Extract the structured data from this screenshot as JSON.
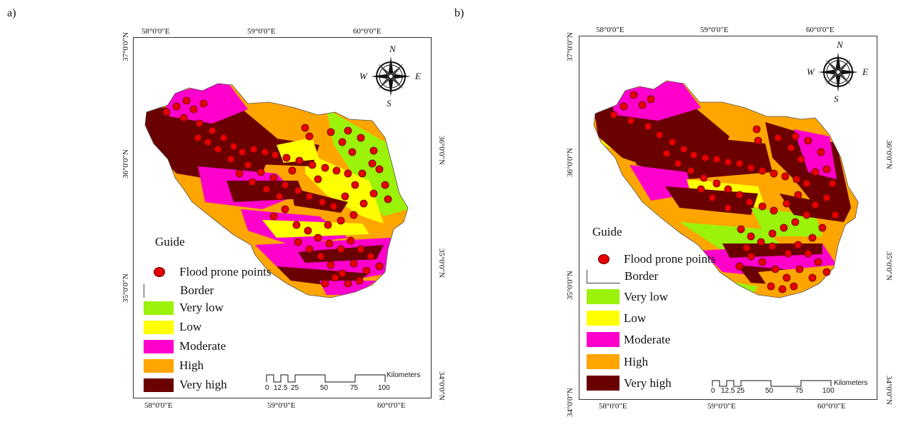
{
  "colors": {
    "very_low": "#9bf20a",
    "low": "#ffff00",
    "moderate": "#ff00cc",
    "high": "#ffa500",
    "very_high": "#6b0000",
    "flood_point": "#e60000"
  },
  "panels": [
    {
      "label": "a)",
      "lon_labels_top": [
        "58°0'0\"E",
        "59°0'0\"E",
        "60°0'0\"E"
      ],
      "lon_labels_bottom": [
        "58°0'0\"E",
        "59°0'0\"E",
        "60°0'0\"E"
      ],
      "lat_labels_left": [
        "37°0'0\"N",
        "36°0'0\"N",
        "35°0'0\"N"
      ],
      "lat_labels_right": [
        "36°0'0\"N",
        "35°0'0\"N",
        "34°0'0\"N"
      ],
      "compass": {
        "n": "N",
        "s": "S",
        "e": "E",
        "w": "W"
      },
      "legend": {
        "title": "Guide",
        "points": "Flood prone points",
        "border": "Border",
        "classes": [
          "Very low",
          "Low",
          "Moderate",
          "High",
          "Very high"
        ]
      },
      "scale": {
        "unit": "Kilometers",
        "ticks": [
          "0",
          "12.5",
          "25",
          "50",
          "75",
          "100"
        ]
      }
    },
    {
      "label": "b)",
      "lon_labels_top": [
        "58°0'0\"E",
        "59°0'0\"E",
        "60°0'0\"E"
      ],
      "lon_labels_bottom": [
        "58°0'0\"E",
        "59°0'0\"E",
        "60°0'0\"E"
      ],
      "lat_labels_left": [
        "37°0'0\"N",
        "36°0'0\"N",
        "35°0'0\"N",
        "34°0'0\"N"
      ],
      "lat_labels_right": [
        "36°0'0\"N",
        "35°0'0\"N",
        "34°0'0\"N"
      ],
      "compass": {
        "n": "N",
        "s": "S",
        "e": "E",
        "w": "W"
      },
      "legend": {
        "title": "Guide",
        "points": "Flood prone points",
        "border": "Border",
        "classes": [
          "Very low",
          "Low",
          "Moderate",
          "High",
          "Very high"
        ]
      },
      "scale": {
        "unit": "Kilometers",
        "ticks": [
          "0",
          "12.5",
          "25",
          "50",
          "75",
          "100"
        ]
      }
    }
  ]
}
